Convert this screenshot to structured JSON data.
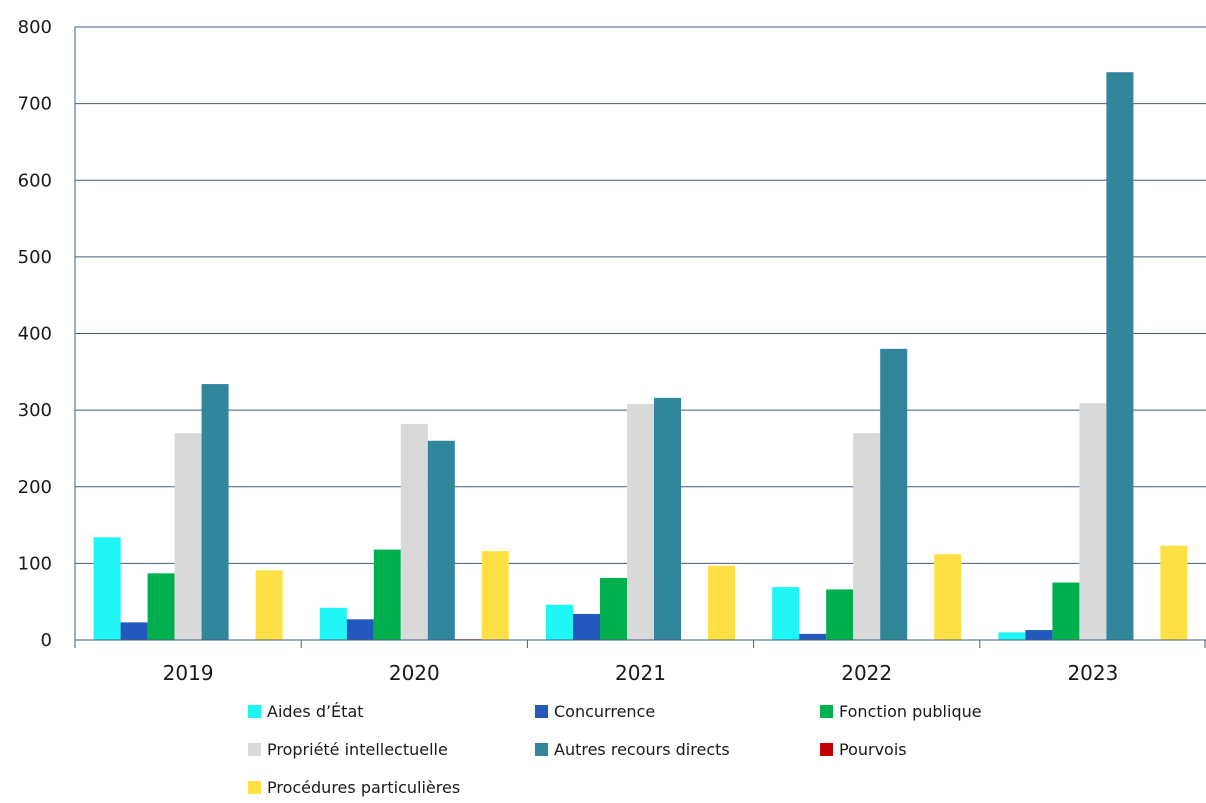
{
  "chart_data": {
    "type": "bar",
    "title": "",
    "xlabel": "",
    "ylabel": "",
    "ylim": [
      0,
      800
    ],
    "yticks": [
      0,
      100,
      200,
      300,
      400,
      500,
      600,
      700,
      800
    ],
    "grid": true,
    "legend_position": "bottom",
    "categories": [
      "2019",
      "2020",
      "2021",
      "2022",
      "2023"
    ],
    "series": [
      {
        "name": "Aides d’État",
        "color": "#1ff5f5",
        "values": [
          134,
          42,
          46,
          69,
          10
        ]
      },
      {
        "name": "Concurrence",
        "color": "#2358be",
        "values": [
          23,
          27,
          34,
          8,
          13
        ]
      },
      {
        "name": "Fonction publique",
        "color": "#00b04f",
        "values": [
          87,
          118,
          81,
          66,
          75
        ]
      },
      {
        "name": "Propriété intellectuelle",
        "color": "#d9d9d9",
        "values": [
          270,
          282,
          308,
          270,
          309
        ]
      },
      {
        "name": "Autres recours directs",
        "color": "#31869b",
        "values": [
          334,
          260,
          316,
          380,
          741
        ]
      },
      {
        "name": "Pourvois",
        "color": "#c00000",
        "values": [
          0,
          1,
          0,
          0,
          0
        ]
      },
      {
        "name": "Procédures particulières",
        "color": "#ffe045",
        "values": [
          91,
          116,
          97,
          112,
          123
        ]
      }
    ]
  }
}
